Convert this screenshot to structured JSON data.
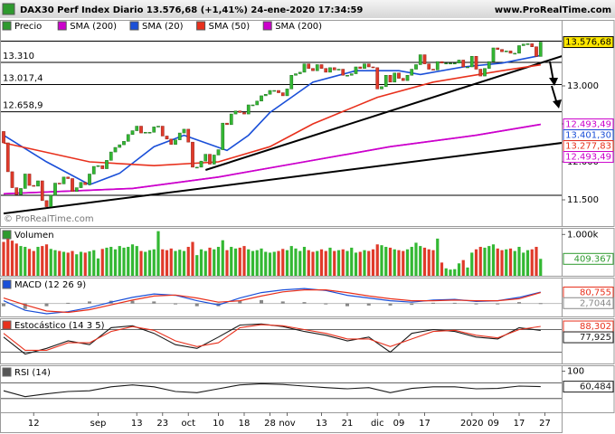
{
  "header": {
    "title": "DAX30 Perf Index Diario 13.576,68 (+1,41%) 24-ene-2020 17:34:59",
    "site": "www.ProRealTime.com"
  },
  "xlabels": [
    {
      "index": 7,
      "label": "12"
    },
    {
      "index": 22,
      "label": "sep"
    },
    {
      "index": 31,
      "label": "13"
    },
    {
      "index": 37,
      "label": "23"
    },
    {
      "index": 43,
      "label": "oct"
    },
    {
      "index": 50,
      "label": "10"
    },
    {
      "index": 56,
      "label": "18"
    },
    {
      "index": 62,
      "label": "28"
    },
    {
      "index": 66,
      "label": "nov"
    },
    {
      "index": 74,
      "label": "13"
    },
    {
      "index": 80,
      "label": "21"
    },
    {
      "index": 87,
      "label": "dic"
    },
    {
      "index": 92,
      "label": "09"
    },
    {
      "index": 98,
      "label": "17"
    },
    {
      "index": 109,
      "label": "2020"
    },
    {
      "index": 114,
      "label": "09"
    },
    {
      "index": 120,
      "label": "17"
    },
    {
      "index": 126,
      "label": "27"
    }
  ],
  "chart_data": [
    {
      "type": "candlestick",
      "name": "Precio",
      "watermark": "© ProRealTime.com",
      "up_color": "#33b833",
      "down_color": "#e03a2a",
      "open": [
        12400,
        12250,
        11870,
        11660,
        11570,
        11650,
        11840,
        11690,
        11680,
        11750,
        11490,
        11410,
        11560,
        11720,
        11710,
        11800,
        11780,
        11610,
        11660,
        11730,
        11700,
        11840,
        11940,
        11950,
        11910,
        12020,
        12130,
        12190,
        12225,
        12270,
        12360,
        12410,
        12470,
        12380,
        12390,
        12390,
        12460,
        12470,
        12340,
        12300,
        12230,
        12290,
        12380,
        12430,
        12260,
        11930,
        11930,
        12010,
        12100,
        11970,
        12090,
        12160,
        12510,
        12490,
        12630,
        12670,
        12650,
        12630,
        12750,
        12750,
        12800,
        12870,
        12890,
        12940,
        12940,
        12910,
        12870,
        12960,
        13140,
        13160,
        13180,
        13290,
        13230,
        13200,
        13280,
        13230,
        13180,
        13240,
        13210,
        13220,
        13140,
        13140,
        13160,
        13250,
        13230,
        13290,
        13250,
        13240,
        12960,
        12990,
        13140,
        13050,
        13170,
        13100,
        13070,
        13140,
        13220,
        13280,
        13410,
        13290,
        13220,
        13210,
        13320,
        13300,
        13300,
        13300,
        13300,
        13340,
        13250,
        13250,
        13390,
        13220,
        13130,
        13230,
        13320,
        13500,
        13480,
        13450,
        13460,
        13430,
        13430,
        13530,
        13550,
        13555,
        13515,
        13388
      ],
      "close": [
        12250,
        11870,
        11660,
        11570,
        11650,
        11840,
        11690,
        11680,
        11750,
        11490,
        11410,
        11560,
        11720,
        11710,
        11800,
        11780,
        11610,
        11660,
        11730,
        11700,
        11840,
        11940,
        11950,
        11910,
        12020,
        12130,
        12190,
        12225,
        12270,
        12360,
        12410,
        12470,
        12380,
        12390,
        12390,
        12460,
        12470,
        12340,
        12300,
        12230,
        12290,
        12380,
        12430,
        12260,
        11930,
        11930,
        12010,
        12100,
        11970,
        12090,
        12160,
        12510,
        12490,
        12630,
        12670,
        12650,
        12630,
        12750,
        12750,
        12800,
        12870,
        12890,
        12940,
        12940,
        12910,
        12870,
        12960,
        13140,
        13160,
        13180,
        13290,
        13230,
        13200,
        13280,
        13230,
        13180,
        13240,
        13210,
        13220,
        13140,
        13140,
        13160,
        13250,
        13230,
        13290,
        13250,
        13240,
        12960,
        12990,
        13140,
        13050,
        13170,
        13100,
        13070,
        13140,
        13220,
        13280,
        13410,
        13290,
        13220,
        13210,
        13320,
        13300,
        13300,
        13300,
        13300,
        13340,
        13250,
        13250,
        13390,
        13220,
        13130,
        13230,
        13320,
        13500,
        13480,
        13450,
        13460,
        13430,
        13430,
        13530,
        13550,
        13555,
        13515,
        13388,
        13576.68
      ],
      "close_label": "13.576,68",
      "sma": [
        {
          "name": "SMA (200)",
          "color": "#cc00cc",
          "x": [
            0,
            30,
            50,
            70,
            90,
            110,
            125
          ],
          "values": [
            11580,
            11650,
            11800,
            12000,
            12200,
            12350,
            12493.49
          ],
          "value_label": "12.493,49"
        },
        {
          "name": "SMA (20)",
          "color": "#1a4fd8",
          "x": [
            0,
            10,
            20,
            27,
            35,
            42,
            47,
            52,
            57,
            62,
            67,
            72,
            82,
            92,
            97,
            107,
            116,
            125
          ],
          "values": [
            12350,
            12000,
            11700,
            11850,
            12200,
            12350,
            12250,
            12150,
            12350,
            12650,
            12850,
            13050,
            13200,
            13200,
            13150,
            13250,
            13300,
            13401.3
          ],
          "value_label": "13.401,30"
        },
        {
          "name": "SMA (50)",
          "color": "#e8301c",
          "x": [
            0,
            20,
            35,
            50,
            62,
            72,
            87,
            100,
            116,
            125
          ],
          "values": [
            12250,
            12000,
            11950,
            12000,
            12200,
            12500,
            12850,
            13050,
            13200,
            13277.83
          ],
          "value_label": "13.277,83"
        },
        {
          "name": "SMA (200)",
          "color": "#cc00cc",
          "x": [
            0,
            30,
            50,
            70,
            90,
            110,
            125
          ],
          "values": [
            11580,
            11650,
            11800,
            12000,
            12200,
            12350,
            12493.49
          ],
          "value_label": "12.493,49"
        }
      ],
      "ylim": [
        11155,
        13738
      ],
      "yticks": [
        {
          "value": 13000,
          "label": "13.000"
        },
        {
          "value": 12500,
          "label": "12.500"
        },
        {
          "value": 12000,
          "label": "12.000"
        },
        {
          "value": 11500,
          "label": "11.500"
        }
      ],
      "levels": [
        {
          "value": 13589.4
        },
        {
          "value": 13310,
          "label": "13.310"
        },
        {
          "value": 13017.4,
          "label": "13.017,4"
        },
        {
          "value": 12658.9,
          "label": "12.658,9"
        },
        {
          "value": 11560
        }
      ],
      "trendlines": [
        {
          "x": [
            0,
            130
          ],
          "values": [
            11321,
            12250
          ]
        },
        {
          "x": [
            47,
            130
          ],
          "values": [
            11893,
            13393
          ]
        }
      ]
    },
    {
      "type": "volume",
      "title": "Volumen",
      "ylim": [
        0,
        1160
      ],
      "yticks": [
        {
          "value": 1000,
          "label": "1.000k"
        }
      ],
      "values": [
        820,
        900,
        850,
        780,
        720,
        700,
        650,
        600,
        700,
        720,
        760,
        650,
        620,
        600,
        580,
        560,
        600,
        520,
        580,
        560,
        590,
        620,
        420,
        650,
        680,
        700,
        640,
        720,
        680,
        700,
        760,
        720,
        600,
        580,
        620,
        640,
        1080,
        640,
        620,
        660,
        600,
        630,
        600,
        700,
        820,
        500,
        640,
        600,
        680,
        640,
        700,
        860,
        620,
        700,
        660,
        680,
        720,
        640,
        600,
        620,
        660,
        580,
        560,
        580,
        600,
        650,
        620,
        720,
        660,
        600,
        700,
        620,
        580,
        600,
        640,
        600,
        680,
        600,
        620,
        640,
        600,
        680,
        560,
        580,
        620,
        600,
        640,
        760,
        740,
        700,
        680,
        640,
        620,
        600,
        640,
        700,
        800,
        720,
        680,
        640,
        620,
        900,
        320,
        180,
        150,
        160,
        300,
        380,
        200,
        560,
        640,
        700,
        680,
        720,
        760,
        660,
        620,
        640,
        660,
        600,
        700,
        560,
        620,
        640,
        700,
        409.367
      ],
      "value_label": "409.367"
    },
    {
      "type": "macd",
      "title": "MACD (12 26 9)",
      "ylim": [
        -95,
        190
      ],
      "x": [
        0,
        5,
        10,
        15,
        20,
        25,
        30,
        35,
        40,
        45,
        50,
        55,
        60,
        65,
        70,
        75,
        80,
        85,
        90,
        95,
        100,
        105,
        110,
        115,
        120,
        125
      ],
      "series": [
        {
          "color": "#1a4fd8",
          "values": [
            20,
            -50,
            -75,
            -60,
            -30,
            10,
            45,
            70,
            60,
            20,
            -10,
            40,
            80,
            100,
            110,
            95,
            60,
            40,
            20,
            10,
            25,
            30,
            15,
            20,
            45,
            83.46
          ]
        },
        {
          "color": "#e8301c",
          "values": [
            40,
            -10,
            -55,
            -65,
            -45,
            -10,
            25,
            55,
            62,
            40,
            10,
            20,
            55,
            85,
            100,
            100,
            80,
            55,
            35,
            20,
            20,
            25,
            20,
            20,
            35,
            80.755
          ],
          "value_label": "80,755"
        }
      ],
      "histogram": {
        "color": "#888888",
        "values": [
          -20,
          -40,
          -20,
          5,
          15,
          20,
          20,
          15,
          -2,
          -20,
          -20,
          20,
          25,
          15,
          10,
          -5,
          -20,
          -15,
          -15,
          -10,
          5,
          5,
          -5,
          0,
          10,
          2.7044
        ],
        "value_label": "2,7044"
      }
    },
    {
      "type": "stochastic",
      "title": "Estocástico (14 3 5)",
      "ylim": [
        -10,
        110
      ],
      "levels": [
        80,
        20
      ],
      "x": [
        0,
        5,
        10,
        15,
        20,
        25,
        30,
        35,
        40,
        45,
        50,
        55,
        60,
        65,
        70,
        75,
        80,
        85,
        90,
        95,
        100,
        105,
        110,
        115,
        120,
        125
      ],
      "series": [
        {
          "color": "#1a1a1a",
          "values": [
            60,
            15,
            30,
            50,
            40,
            85,
            90,
            70,
            40,
            30,
            60,
            92,
            95,
            88,
            75,
            65,
            50,
            60,
            20,
            70,
            80,
            75,
            60,
            55,
            85,
            77.925
          ],
          "value_label": "77,925"
        },
        {
          "color": "#e8301c",
          "values": [
            70,
            25,
            25,
            45,
            45,
            75,
            88,
            78,
            50,
            35,
            45,
            85,
            93,
            90,
            80,
            70,
            55,
            55,
            35,
            55,
            75,
            78,
            65,
            58,
            80,
            88.302
          ],
          "value_label": "88,302"
        }
      ]
    },
    {
      "type": "rsi",
      "title": "RSI (14)",
      "ylim": [
        -5,
        115
      ],
      "yticks": [
        100
      ],
      "levels": [
        70,
        30
      ],
      "x": [
        0,
        5,
        10,
        15,
        20,
        25,
        30,
        35,
        40,
        45,
        50,
        55,
        60,
        65,
        70,
        75,
        80,
        85,
        90,
        95,
        100,
        105,
        110,
        115,
        120,
        125
      ],
      "series": [
        {
          "color": "#1a1a1a",
          "values": [
            50,
            35,
            42,
            48,
            50,
            60,
            65,
            60,
            48,
            45,
            55,
            65,
            68,
            66,
            62,
            58,
            55,
            58,
            45,
            56,
            60,
            60,
            55,
            56,
            62,
            60.484
          ],
          "value_label": "60,484"
        }
      ]
    }
  ]
}
